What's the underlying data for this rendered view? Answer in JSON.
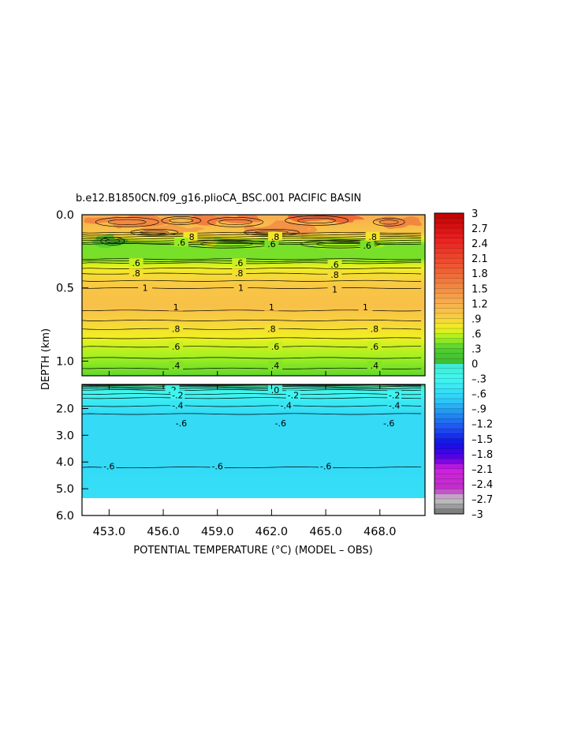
{
  "chart_data": {
    "type": "heatmap",
    "title": "b.e12.B1850CN.f09_g16.plioCA_BSC.001 PACIFIC BASIN",
    "xlabel": "POTENTIAL TEMPERATURE (°C) (MODEL – OBS)",
    "ylabel": "DEPTH (km)",
    "x_ticks": [
      453.0,
      456.0,
      459.0,
      462.0,
      465.0,
      468.0
    ],
    "x_tick_labels": [
      "453.0",
      "456.0",
      "459.0",
      "462.0",
      "465.0",
      "468.0"
    ],
    "xlim": [
      451.5,
      470.5
    ],
    "upper_panel": {
      "ylim": [
        0.0,
        1.1
      ],
      "y_ticks": [
        0.0,
        0.5,
        1.0
      ],
      "y_tick_labels": [
        "0.0",
        "0.5",
        "1.0"
      ]
    },
    "lower_panel": {
      "ylim": [
        1.1,
        6.0
      ],
      "y_ticks": [
        2.0,
        3.0,
        4.0,
        5.0,
        6.0
      ],
      "y_tick_labels": [
        "2.0",
        "3.0",
        "4.0",
        "5.0",
        "6.0"
      ],
      "data_bottom": 5.35
    },
    "depth_profile": [
      {
        "depth": 0.02,
        "value": 1.2
      },
      {
        "depth": 0.12,
        "value": 1.0
      },
      {
        "depth": 0.2,
        "value": 0.4
      },
      {
        "depth": 0.3,
        "value": 0.4
      },
      {
        "depth": 0.33,
        "value": 0.6
      },
      {
        "depth": 0.4,
        "value": 0.8
      },
      {
        "depth": 0.5,
        "value": 1.0
      },
      {
        "depth": 0.62,
        "value": 1.05
      },
      {
        "depth": 0.72,
        "value": 0.9
      },
      {
        "depth": 0.78,
        "value": 0.8
      },
      {
        "depth": 0.9,
        "value": 0.6
      },
      {
        "depth": 1.05,
        "value": 0.4
      },
      {
        "depth": 1.1,
        "value": 0.35
      },
      {
        "depth": 1.12,
        "value": 0.1
      },
      {
        "depth": 1.3,
        "value": -0.2
      },
      {
        "depth": 1.6,
        "value": -0.4
      },
      {
        "depth": 2.2,
        "value": -0.6
      },
      {
        "depth": 4.2,
        "value": -0.6
      },
      {
        "depth": 5.3,
        "value": -0.55
      }
    ],
    "contour_labels": [
      {
        "text": ".8",
        "x": 457.5,
        "depth": 0.15
      },
      {
        "text": ".6",
        "x": 457.0,
        "depth": 0.19
      },
      {
        "text": ".6",
        "x": 462.0,
        "depth": 0.2
      },
      {
        "text": ".8",
        "x": 462.2,
        "depth": 0.15
      },
      {
        "text": ".6",
        "x": 467.3,
        "depth": 0.21
      },
      {
        "text": ".8",
        "x": 467.6,
        "depth": 0.15
      },
      {
        "text": ".6",
        "x": 454.5,
        "depth": 0.33
      },
      {
        "text": ".8",
        "x": 454.5,
        "depth": 0.4
      },
      {
        "text": ".6",
        "x": 460.2,
        "depth": 0.33
      },
      {
        "text": ".8",
        "x": 460.2,
        "depth": 0.4
      },
      {
        "text": ".6",
        "x": 465.5,
        "depth": 0.34
      },
      {
        "text": ".8",
        "x": 465.5,
        "depth": 0.41
      },
      {
        "text": "1",
        "x": 455.0,
        "depth": 0.5
      },
      {
        "text": "1",
        "x": 460.3,
        "depth": 0.5
      },
      {
        "text": "1",
        "x": 465.5,
        "depth": 0.51
      },
      {
        "text": "1",
        "x": 456.7,
        "depth": 0.63
      },
      {
        "text": "1",
        "x": 462.0,
        "depth": 0.63
      },
      {
        "text": "1",
        "x": 467.2,
        "depth": 0.63
      },
      {
        "text": ".8",
        "x": 456.7,
        "depth": 0.78
      },
      {
        "text": ".8",
        "x": 462.0,
        "depth": 0.78
      },
      {
        "text": ".8",
        "x": 467.7,
        "depth": 0.78
      },
      {
        "text": ".6",
        "x": 456.7,
        "depth": 0.9
      },
      {
        "text": ".6",
        "x": 462.2,
        "depth": 0.9
      },
      {
        "text": ".6",
        "x": 467.7,
        "depth": 0.9
      },
      {
        "text": ".4",
        "x": 456.7,
        "depth": 1.03
      },
      {
        "text": ".4",
        "x": 462.2,
        "depth": 1.03
      },
      {
        "text": ".4",
        "x": 467.7,
        "depth": 1.03
      },
      {
        "text": ".2",
        "x": 456.5,
        "depth": 1.3
      },
      {
        "text": ".0",
        "x": 462.2,
        "depth": 1.3
      },
      {
        "text": "-.2",
        "x": 456.8,
        "depth": 1.5
      },
      {
        "text": "-.2",
        "x": 463.2,
        "depth": 1.5
      },
      {
        "text": "-.2",
        "x": 468.8,
        "depth": 1.5
      },
      {
        "text": "-.4",
        "x": 456.8,
        "depth": 1.88
      },
      {
        "text": "-.4",
        "x": 462.8,
        "depth": 1.88
      },
      {
        "text": "-.4",
        "x": 468.8,
        "depth": 1.88
      },
      {
        "text": "-.6",
        "x": 457.0,
        "depth": 2.55
      },
      {
        "text": "-.6",
        "x": 462.5,
        "depth": 2.55
      },
      {
        "text": "-.6",
        "x": 468.5,
        "depth": 2.55
      },
      {
        "text": "-.6",
        "x": 453.0,
        "depth": 4.15
      },
      {
        "text": "-.6",
        "x": 459.0,
        "depth": 4.15
      },
      {
        "text": "-.6",
        "x": 465.0,
        "depth": 4.15
      }
    ],
    "colorbar": {
      "vmin": -3,
      "vmax": 3,
      "step": 0.1,
      "tick_labels": [
        "3",
        "2.7",
        "2.4",
        "2.1",
        "1.8",
        "1.5",
        "1.2",
        ".9",
        ".6",
        ".3",
        "0",
        "–.3",
        "–.6",
        "–.9",
        "–1.2",
        "–1.5",
        "–1.8",
        "–2.1",
        "–2.4",
        "–2.7",
        "–3"
      ],
      "color_stops": [
        {
          "v": -3.0,
          "c": "#707070"
        },
        {
          "v": -2.7,
          "c": "#c8c8c8"
        },
        {
          "v": -2.5,
          "c": "#c030c8"
        },
        {
          "v": -2.1,
          "c": "#d020e0"
        },
        {
          "v": -1.9,
          "c": "#6000e0"
        },
        {
          "v": -1.6,
          "c": "#1010e8"
        },
        {
          "v": -1.3,
          "c": "#2050f0"
        },
        {
          "v": -1.0,
          "c": "#2090f0"
        },
        {
          "v": -0.7,
          "c": "#30d0f8"
        },
        {
          "v": -0.3,
          "c": "#40f8f0"
        },
        {
          "v": 0.0,
          "c": "#40e8d0"
        },
        {
          "v": 0.05,
          "c": "#40c030"
        },
        {
          "v": 0.3,
          "c": "#50d030"
        },
        {
          "v": 0.5,
          "c": "#a0f020"
        },
        {
          "v": 0.7,
          "c": "#f0f020"
        },
        {
          "v": 0.9,
          "c": "#f8d040"
        },
        {
          "v": 1.2,
          "c": "#f8b050"
        },
        {
          "v": 1.6,
          "c": "#f08040"
        },
        {
          "v": 2.0,
          "c": "#f05030"
        },
        {
          "v": 2.5,
          "c": "#e82020"
        },
        {
          "v": 3.0,
          "c": "#c00000"
        }
      ]
    },
    "grid": false,
    "legend": "colorbar-right"
  }
}
